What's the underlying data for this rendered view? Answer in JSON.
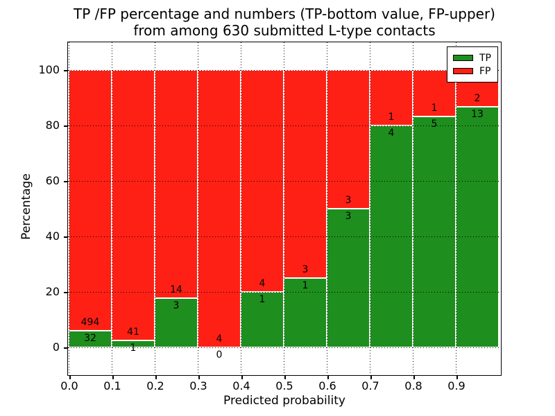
{
  "title": {
    "line1": "TP /FP percentage and numbers (TP-bottom value, FP-upper)",
    "line2": "from among 630 submitted L-type contacts"
  },
  "chart_data": {
    "type": "bar",
    "subtype": "stacked-percentage-histogram",
    "title": "TP /FP percentage and numbers (TP-bottom value, FP-upper) from among 630 submitted L-type contacts",
    "xlabel": "Predicted probability",
    "ylabel": "Percentage",
    "total_submitted": 630,
    "bin_width": 0.1,
    "bin_starts": [
      0.0,
      0.1,
      0.2,
      0.3,
      0.4,
      0.5,
      0.6,
      0.7,
      0.8,
      0.9
    ],
    "x_tick_labels": [
      "0.0",
      "0.1",
      "0.2",
      "0.3",
      "0.4",
      "0.5",
      "0.6",
      "0.7",
      "0.8",
      "0.9"
    ],
    "y_tick_values": [
      0,
      20,
      40,
      60,
      80,
      100
    ],
    "y_tick_labels": [
      "0",
      "20",
      "40",
      "60",
      "80",
      "100"
    ],
    "xlim": [
      0.0,
      1.0
    ],
    "ylim": [
      -10,
      110
    ],
    "grid": "dotted",
    "series": [
      {
        "name": "TP",
        "color": "#1e8e1e",
        "counts": [
          32,
          1,
          3,
          0,
          1,
          1,
          3,
          4,
          5,
          13
        ]
      },
      {
        "name": "FP",
        "color": "#ff2015",
        "counts": [
          494,
          41,
          14,
          4,
          4,
          3,
          3,
          1,
          1,
          2
        ]
      }
    ],
    "tp_percent": [
      6.08,
      2.38,
      17.65,
      0.0,
      20.0,
      25.0,
      50.0,
      80.0,
      83.33,
      86.67
    ],
    "legend": {
      "position": "upper-right",
      "entries": [
        "TP",
        "FP"
      ]
    }
  }
}
